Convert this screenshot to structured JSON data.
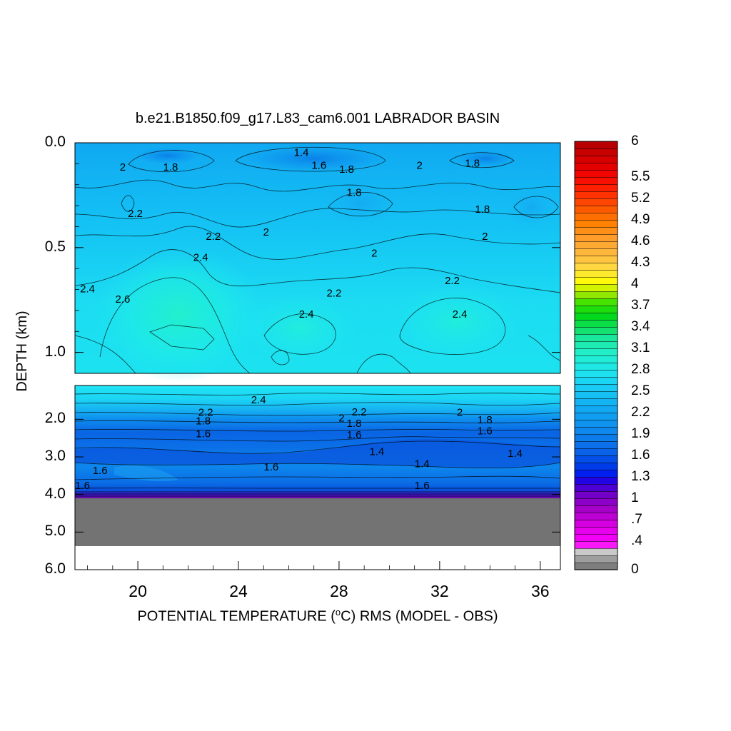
{
  "chart_data": {
    "type": "heatmap",
    "title": "b.e21.B1850.f09_g17.L83_cam6.001 LABRADOR BASIN",
    "xlabel_parts": {
      "prefix": "POTENTIAL TEMPERATURE (",
      "superscript": "o",
      "suffix": "C) RMS (MODEL - OBS)"
    },
    "ylabel": "DEPTH (km)",
    "x_ticks": [
      "20",
      "24",
      "28",
      "32",
      "36"
    ],
    "x_tick_values": [
      20,
      24,
      28,
      32,
      36
    ],
    "xlim": [
      17.5,
      36.8
    ],
    "y_ticks_upper": [
      "0.0",
      "0.5",
      "1.0"
    ],
    "y_tick_values_upper": [
      0,
      0.5,
      1.0
    ],
    "ylim_upper": [
      0,
      1.1
    ],
    "y_ticks_lower": [
      "2.0",
      "3.0",
      "4.0",
      "5.0",
      "6.0"
    ],
    "y_tick_values_lower": [
      2,
      3,
      4,
      5,
      6
    ],
    "ylim_lower": [
      1.1,
      6.0
    ],
    "bottom_depth_km": 4.15,
    "land_fill_to_km": 5.35,
    "colorbar_labels": [
      "6",
      "5.5",
      "5.2",
      "4.9",
      "4.6",
      "4.3",
      "4",
      "3.7",
      "3.4",
      "3.1",
      "2.8",
      "2.5",
      "2.2",
      "1.9",
      "1.6",
      "1.3",
      "1",
      ".7",
      ".4",
      "0"
    ],
    "colorbar_label_values": [
      6,
      5.5,
      5.2,
      4.9,
      4.6,
      4.3,
      4,
      3.7,
      3.4,
      3.1,
      2.8,
      2.5,
      2.2,
      1.9,
      1.6,
      1.3,
      1,
      0.7,
      0.4,
      0
    ],
    "contour_labels_upper": [
      {
        "text": "1.4",
        "x": 26.5,
        "y": 0.05
      },
      {
        "text": "1.8",
        "x": 21.3,
        "y": 0.12
      },
      {
        "text": "2",
        "x": 19.4,
        "y": 0.12
      },
      {
        "text": "1.6",
        "x": 27.2,
        "y": 0.11
      },
      {
        "text": "1.8",
        "x": 28.3,
        "y": 0.13
      },
      {
        "text": "2",
        "x": 31.2,
        "y": 0.11
      },
      {
        "text": "1.8",
        "x": 33.3,
        "y": 0.1
      },
      {
        "text": "1.8",
        "x": 28.6,
        "y": 0.24
      },
      {
        "text": "2.2",
        "x": 19.9,
        "y": 0.34
      },
      {
        "text": "1.8",
        "x": 33.7,
        "y": 0.32
      },
      {
        "text": "2.2",
        "x": 23.0,
        "y": 0.45
      },
      {
        "text": "2",
        "x": 25.1,
        "y": 0.43
      },
      {
        "text": "2",
        "x": 33.8,
        "y": 0.45
      },
      {
        "text": "2.4",
        "x": 22.5,
        "y": 0.55
      },
      {
        "text": "2",
        "x": 29.4,
        "y": 0.53
      },
      {
        "text": "2.2",
        "x": 32.5,
        "y": 0.66
      },
      {
        "text": "2.4",
        "x": 18.0,
        "y": 0.7
      },
      {
        "text": "2.2",
        "x": 27.8,
        "y": 0.72
      },
      {
        "text": "2.6",
        "x": 19.4,
        "y": 0.75
      },
      {
        "text": "2.4",
        "x": 26.7,
        "y": 0.82
      },
      {
        "text": "2.4",
        "x": 32.8,
        "y": 0.82
      }
    ],
    "contour_labels_lower": [
      {
        "text": "2.4",
        "x": 24.8,
        "y": 1.5
      },
      {
        "text": "2.2",
        "x": 22.7,
        "y": 1.83
      },
      {
        "text": "2",
        "x": 28.1,
        "y": 1.98
      },
      {
        "text": "2.2",
        "x": 28.8,
        "y": 1.82
      },
      {
        "text": "2",
        "x": 32.8,
        "y": 1.83
      },
      {
        "text": "1.8",
        "x": 22.6,
        "y": 2.06
      },
      {
        "text": "1.8",
        "x": 28.6,
        "y": 2.13
      },
      {
        "text": "1.8",
        "x": 33.8,
        "y": 2.03
      },
      {
        "text": "1.6",
        "x": 22.6,
        "y": 2.4
      },
      {
        "text": "1.6",
        "x": 28.6,
        "y": 2.43
      },
      {
        "text": "1.6",
        "x": 33.8,
        "y": 2.33
      },
      {
        "text": "1.4",
        "x": 29.5,
        "y": 2.88
      },
      {
        "text": "1.4",
        "x": 35.0,
        "y": 2.92
      },
      {
        "text": "1.4",
        "x": 31.3,
        "y": 3.2
      },
      {
        "text": "1.6",
        "x": 18.5,
        "y": 3.38
      },
      {
        "text": "1.6",
        "x": 25.3,
        "y": 3.28
      },
      {
        "text": "1.6",
        "x": 17.8,
        "y": 3.78
      },
      {
        "text": "1.6",
        "x": 31.3,
        "y": 3.78
      }
    ]
  },
  "colors": {
    "land": "#737373",
    "missing": "#ffffff"
  }
}
